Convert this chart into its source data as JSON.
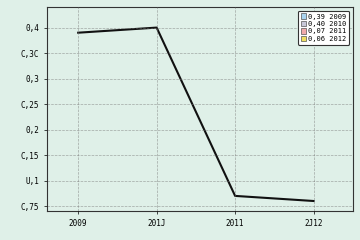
{
  "x": [
    2009,
    2010,
    2011,
    2012
  ],
  "y": [
    0.39,
    0.4,
    0.07,
    0.06
  ],
  "line_color": "#111111",
  "line_width": 1.5,
  "background_color": "#dff0e8",
  "plot_bg_color": "#dff0e8",
  "grid_color": "#777777",
  "ylim": [
    0.04,
    0.44
  ],
  "xlim": [
    2008.6,
    2012.5
  ],
  "yticks": [
    0.05,
    0.1,
    0.15,
    0.2,
    0.25,
    0.3,
    0.35,
    0.4
  ],
  "ytick_labels": [
    "C,75",
    "U,1",
    "C,15",
    "0,2",
    "C,25",
    "0,3",
    "C,3C",
    "0,4"
  ],
  "xticks": [
    2009,
    2010,
    2011,
    2012
  ],
  "xtick_labels": [
    "2009",
    "201J",
    "2011",
    "2J12"
  ],
  "legend_labels": [
    "0,39 2009",
    "0,40 2010",
    "0,07 2011",
    "0,06 2012"
  ],
  "legend_colors": [
    "#aad4f0",
    "#c8c8d8",
    "#f0aaaa",
    "#f0e060"
  ],
  "title": ""
}
